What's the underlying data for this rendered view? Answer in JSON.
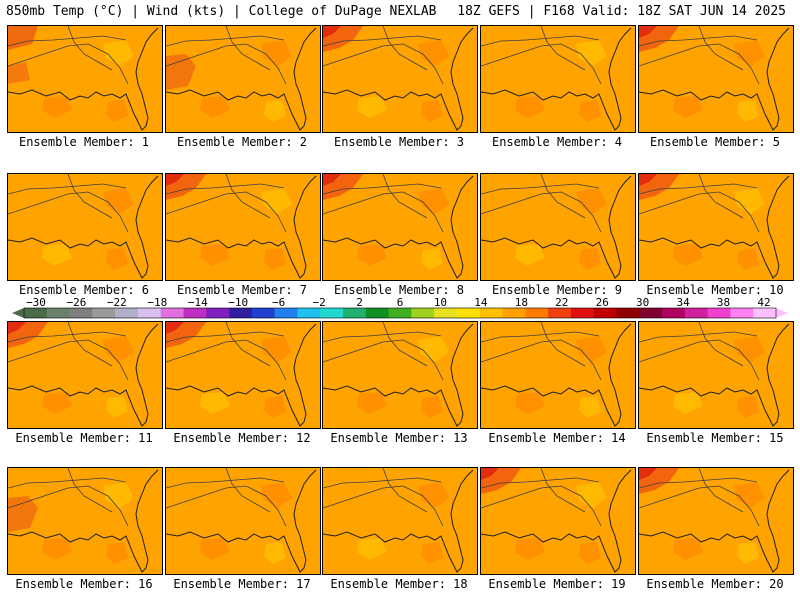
{
  "header": {
    "left": "850mb Temp (°C) | Wind (kts) | College of DuPage NEXLAB",
    "right": "18Z GEFS | F168 Valid: 18Z SAT JUN 14 2025"
  },
  "panels": [
    {
      "label": "Ensemble Member: 1",
      "hot": "nw-west"
    },
    {
      "label": "Ensemble Member: 2",
      "hot": "west"
    },
    {
      "label": "Ensemble Member: 3",
      "hot": "nw"
    },
    {
      "label": "Ensemble Member: 4",
      "hot": "none"
    },
    {
      "label": "Ensemble Member: 5",
      "hot": "nw"
    },
    {
      "label": "Ensemble Member: 6",
      "hot": "none"
    },
    {
      "label": "Ensemble Member: 7",
      "hot": "nw"
    },
    {
      "label": "Ensemble Member: 8",
      "hot": "nw"
    },
    {
      "label": "Ensemble Member: 9",
      "hot": "none"
    },
    {
      "label": "Ensemble Member: 10",
      "hot": "nw"
    },
    {
      "label": "Ensemble Member: 11",
      "hot": "nw"
    },
    {
      "label": "Ensemble Member: 12",
      "hot": "nw"
    },
    {
      "label": "Ensemble Member: 13",
      "hot": "none"
    },
    {
      "label": "Ensemble Member: 14",
      "hot": "none"
    },
    {
      "label": "Ensemble Member: 15",
      "hot": "none"
    },
    {
      "label": "Ensemble Member: 16",
      "hot": "west"
    },
    {
      "label": "Ensemble Member: 17",
      "hot": "none"
    },
    {
      "label": "Ensemble Member: 18",
      "hot": "none"
    },
    {
      "label": "Ensemble Member: 19",
      "hot": "nw"
    },
    {
      "label": "Ensemble Member: 20",
      "hot": "nw"
    }
  ],
  "colorbar": {
    "labels": [
      "−30",
      "−26",
      "−22",
      "−18",
      "−14",
      "−10",
      "−6",
      "−2",
      "2",
      "6",
      "10",
      "14",
      "18",
      "22",
      "26",
      "30",
      "34",
      "38",
      "42"
    ],
    "colors": [
      "#4a6a4a",
      "#6b806b",
      "#7f7f7f",
      "#9a9a9a",
      "#b0b0c8",
      "#d8c0f0",
      "#e070e0",
      "#c030c0",
      "#8020c0",
      "#3020a0",
      "#2040d0",
      "#2080f0",
      "#20c0f0",
      "#20d8d0",
      "#20b070",
      "#109020",
      "#40b020",
      "#a0d020",
      "#e8e020",
      "#ffe000",
      "#ffc000",
      "#ffa000",
      "#ff7a00",
      "#f04010",
      "#e01010",
      "#c00000",
      "#900000",
      "#800030",
      "#b00060",
      "#d020a0",
      "#f040d0",
      "#ff80f0",
      "#ffc0ff"
    ]
  }
}
